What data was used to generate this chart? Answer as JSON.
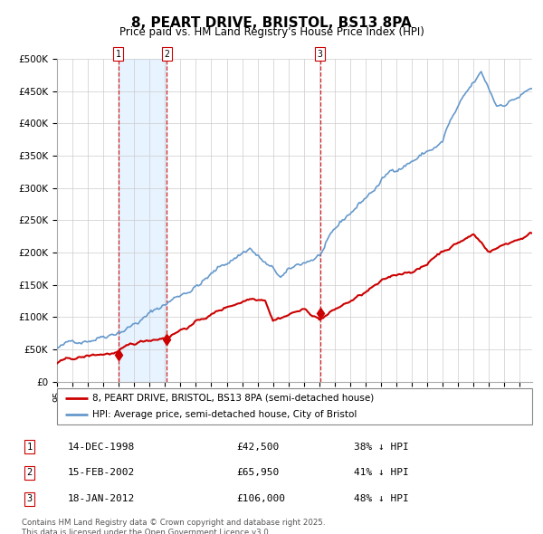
{
  "title": "8, PEART DRIVE, BRISTOL, BS13 8PA",
  "subtitle": "Price paid vs. HM Land Registry's House Price Index (HPI)",
  "legend1": "8, PEART DRIVE, BRISTOL, BS13 8PA (semi-detached house)",
  "legend2": "HPI: Average price, semi-detached house, City of Bristol",
  "footer": "Contains HM Land Registry data © Crown copyright and database right 2025.\nThis data is licensed under the Open Government Licence v3.0.",
  "transactions": [
    {
      "num": 1,
      "date": "14-DEC-1998",
      "price": 42500,
      "year": 1998.96,
      "pct": "38%",
      "dir": "↓"
    },
    {
      "num": 2,
      "date": "15-FEB-2002",
      "price": 65950,
      "year": 2002.12,
      "pct": "41%",
      "dir": "↓"
    },
    {
      "num": 3,
      "date": "18-JAN-2012",
      "price": 106000,
      "year": 2012.05,
      "pct": "48%",
      "dir": "↓"
    }
  ],
  "red_line_color": "#cc0000",
  "blue_line_color": "#6699cc",
  "shade_color": "#ddeeff",
  "grid_color": "#cccccc",
  "bg_color": "#ffffff",
  "dashed_color": "#cc0000",
  "ylim": [
    0,
    500000
  ],
  "yticks": [
    0,
    50000,
    100000,
    150000,
    200000,
    250000,
    300000,
    350000,
    400000,
    450000,
    500000
  ],
  "ytick_labels": [
    "£0",
    "£50K",
    "£100K",
    "£150K",
    "£200K",
    "£250K",
    "£300K",
    "£350K",
    "£400K",
    "£450K",
    "£500K"
  ],
  "xlim_start": 1995.0,
  "xlim_end": 2025.8
}
